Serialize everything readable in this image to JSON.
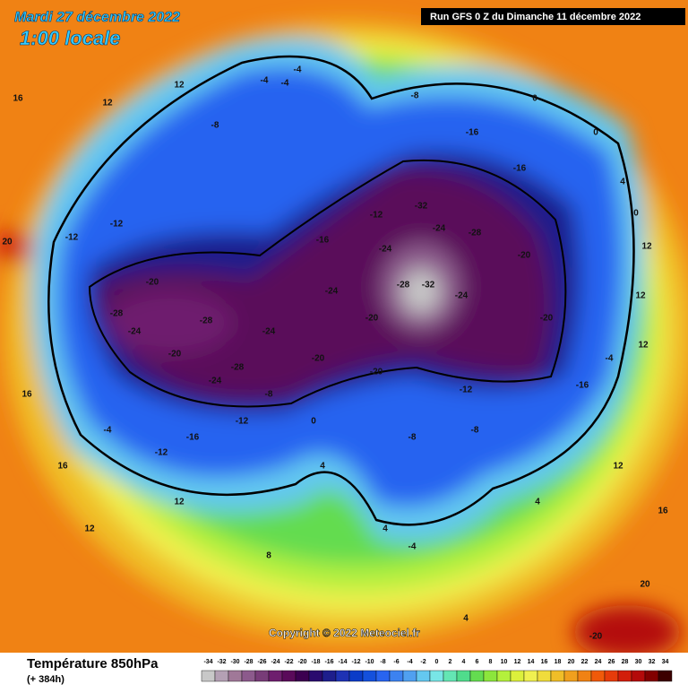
{
  "header": {
    "date": "Mardi 27 décembre 2022",
    "time": "1:00 locale",
    "run": "Run GFS 0 Z du Dimanche 11 décembre 2022"
  },
  "footer": {
    "title": "Température 850hPa",
    "lead": "(+ 384h)",
    "copyright": "Copyright © 2022 Meteociel.fr"
  },
  "legend": {
    "ticks": [
      -34,
      -32,
      -30,
      -28,
      -26,
      -24,
      -22,
      -20,
      -18,
      -16,
      -14,
      -12,
      -10,
      -8,
      -6,
      -4,
      -2,
      0,
      2,
      4,
      6,
      8,
      10,
      12,
      14,
      16,
      18,
      20,
      22,
      24,
      26,
      28,
      30,
      32,
      34
    ],
    "colors": [
      "#c8c8c8",
      "#b4a0b4",
      "#a07898",
      "#8c5a8c",
      "#783c78",
      "#6e1e6e",
      "#5a0a5a",
      "#3c0050",
      "#2a0a6e",
      "#1e1e8c",
      "#1e32b4",
      "#0a3cc8",
      "#1450dc",
      "#2864f0",
      "#3c82f0",
      "#50a0f0",
      "#64c8f0",
      "#78e6e6",
      "#64e6b4",
      "#50dc8c",
      "#64dc50",
      "#8ce63c",
      "#b4f03c",
      "#dcf03c",
      "#f0f050",
      "#f0dc3c",
      "#f0be28",
      "#f0a01e",
      "#f08214",
      "#f05a0a",
      "#e63c0a",
      "#d21e0a",
      "#b40a0a",
      "#820000",
      "#3c0000"
    ]
  },
  "map_labels": [
    -4,
    -4,
    -4,
    -8,
    -16,
    -16,
    0,
    0,
    4,
    0,
    12,
    12,
    12,
    -4,
    -16,
    -20,
    -20,
    -28,
    -32,
    -24,
    -28,
    -32,
    -24,
    -24,
    -24,
    -20,
    -20,
    -12,
    -8,
    -8,
    4,
    -4,
    4,
    8,
    12,
    12,
    16,
    16,
    16,
    12,
    12,
    -8,
    -12,
    -12,
    -20,
    -28,
    -24,
    -28,
    -20,
    -24,
    -28,
    -8,
    -12,
    -16,
    -12,
    -4,
    -24,
    -20,
    -12,
    -16,
    -20,
    20,
    16,
    12,
    4,
    4,
    0,
    20
  ]
}
